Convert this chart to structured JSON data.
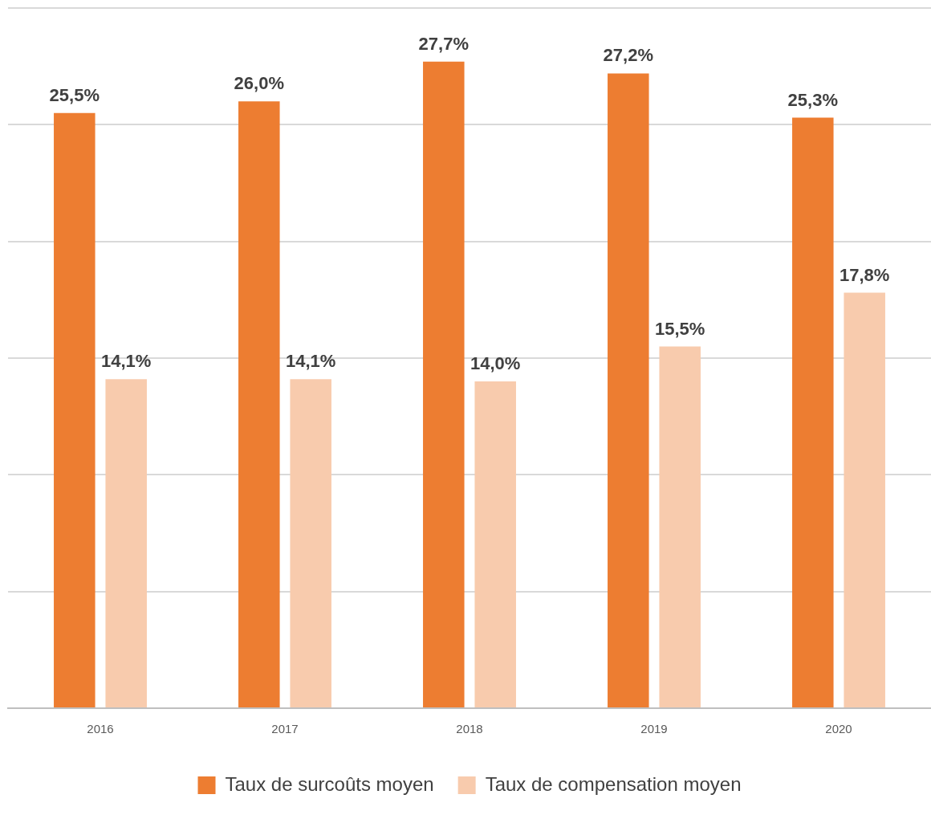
{
  "chart_data": {
    "type": "bar",
    "categories": [
      "2016",
      "2017",
      "2018",
      "2019",
      "2020"
    ],
    "series": [
      {
        "name": "Taux de surcoûts moyen",
        "color": "#ed7d31",
        "values": [
          25.5,
          26.0,
          27.7,
          27.2,
          25.3
        ],
        "value_labels": [
          "25,5%",
          "26,0%",
          "27,7%",
          "27,2%",
          "25,3%"
        ]
      },
      {
        "name": "Taux de compensation moyen",
        "color": "#f8cbad",
        "values": [
          14.1,
          14.1,
          14.0,
          15.5,
          17.8
        ],
        "value_labels": [
          "14,1%",
          "14,1%",
          "14,0%",
          "15,5%",
          "17,8%"
        ]
      }
    ],
    "ylim": [
      0,
      30
    ],
    "yticks": [
      {
        "value": 0,
        "label": null
      },
      {
        "value": 5,
        "label": null
      },
      {
        "value": 10,
        "label": null
      },
      {
        "value": 15,
        "label": null
      },
      {
        "value": 20,
        "label": null
      },
      {
        "value": 25,
        "label": null
      },
      {
        "value": 30,
        "label": null
      }
    ],
    "tick_labels": "x",
    "grid": "y",
    "legend": "bottom"
  }
}
